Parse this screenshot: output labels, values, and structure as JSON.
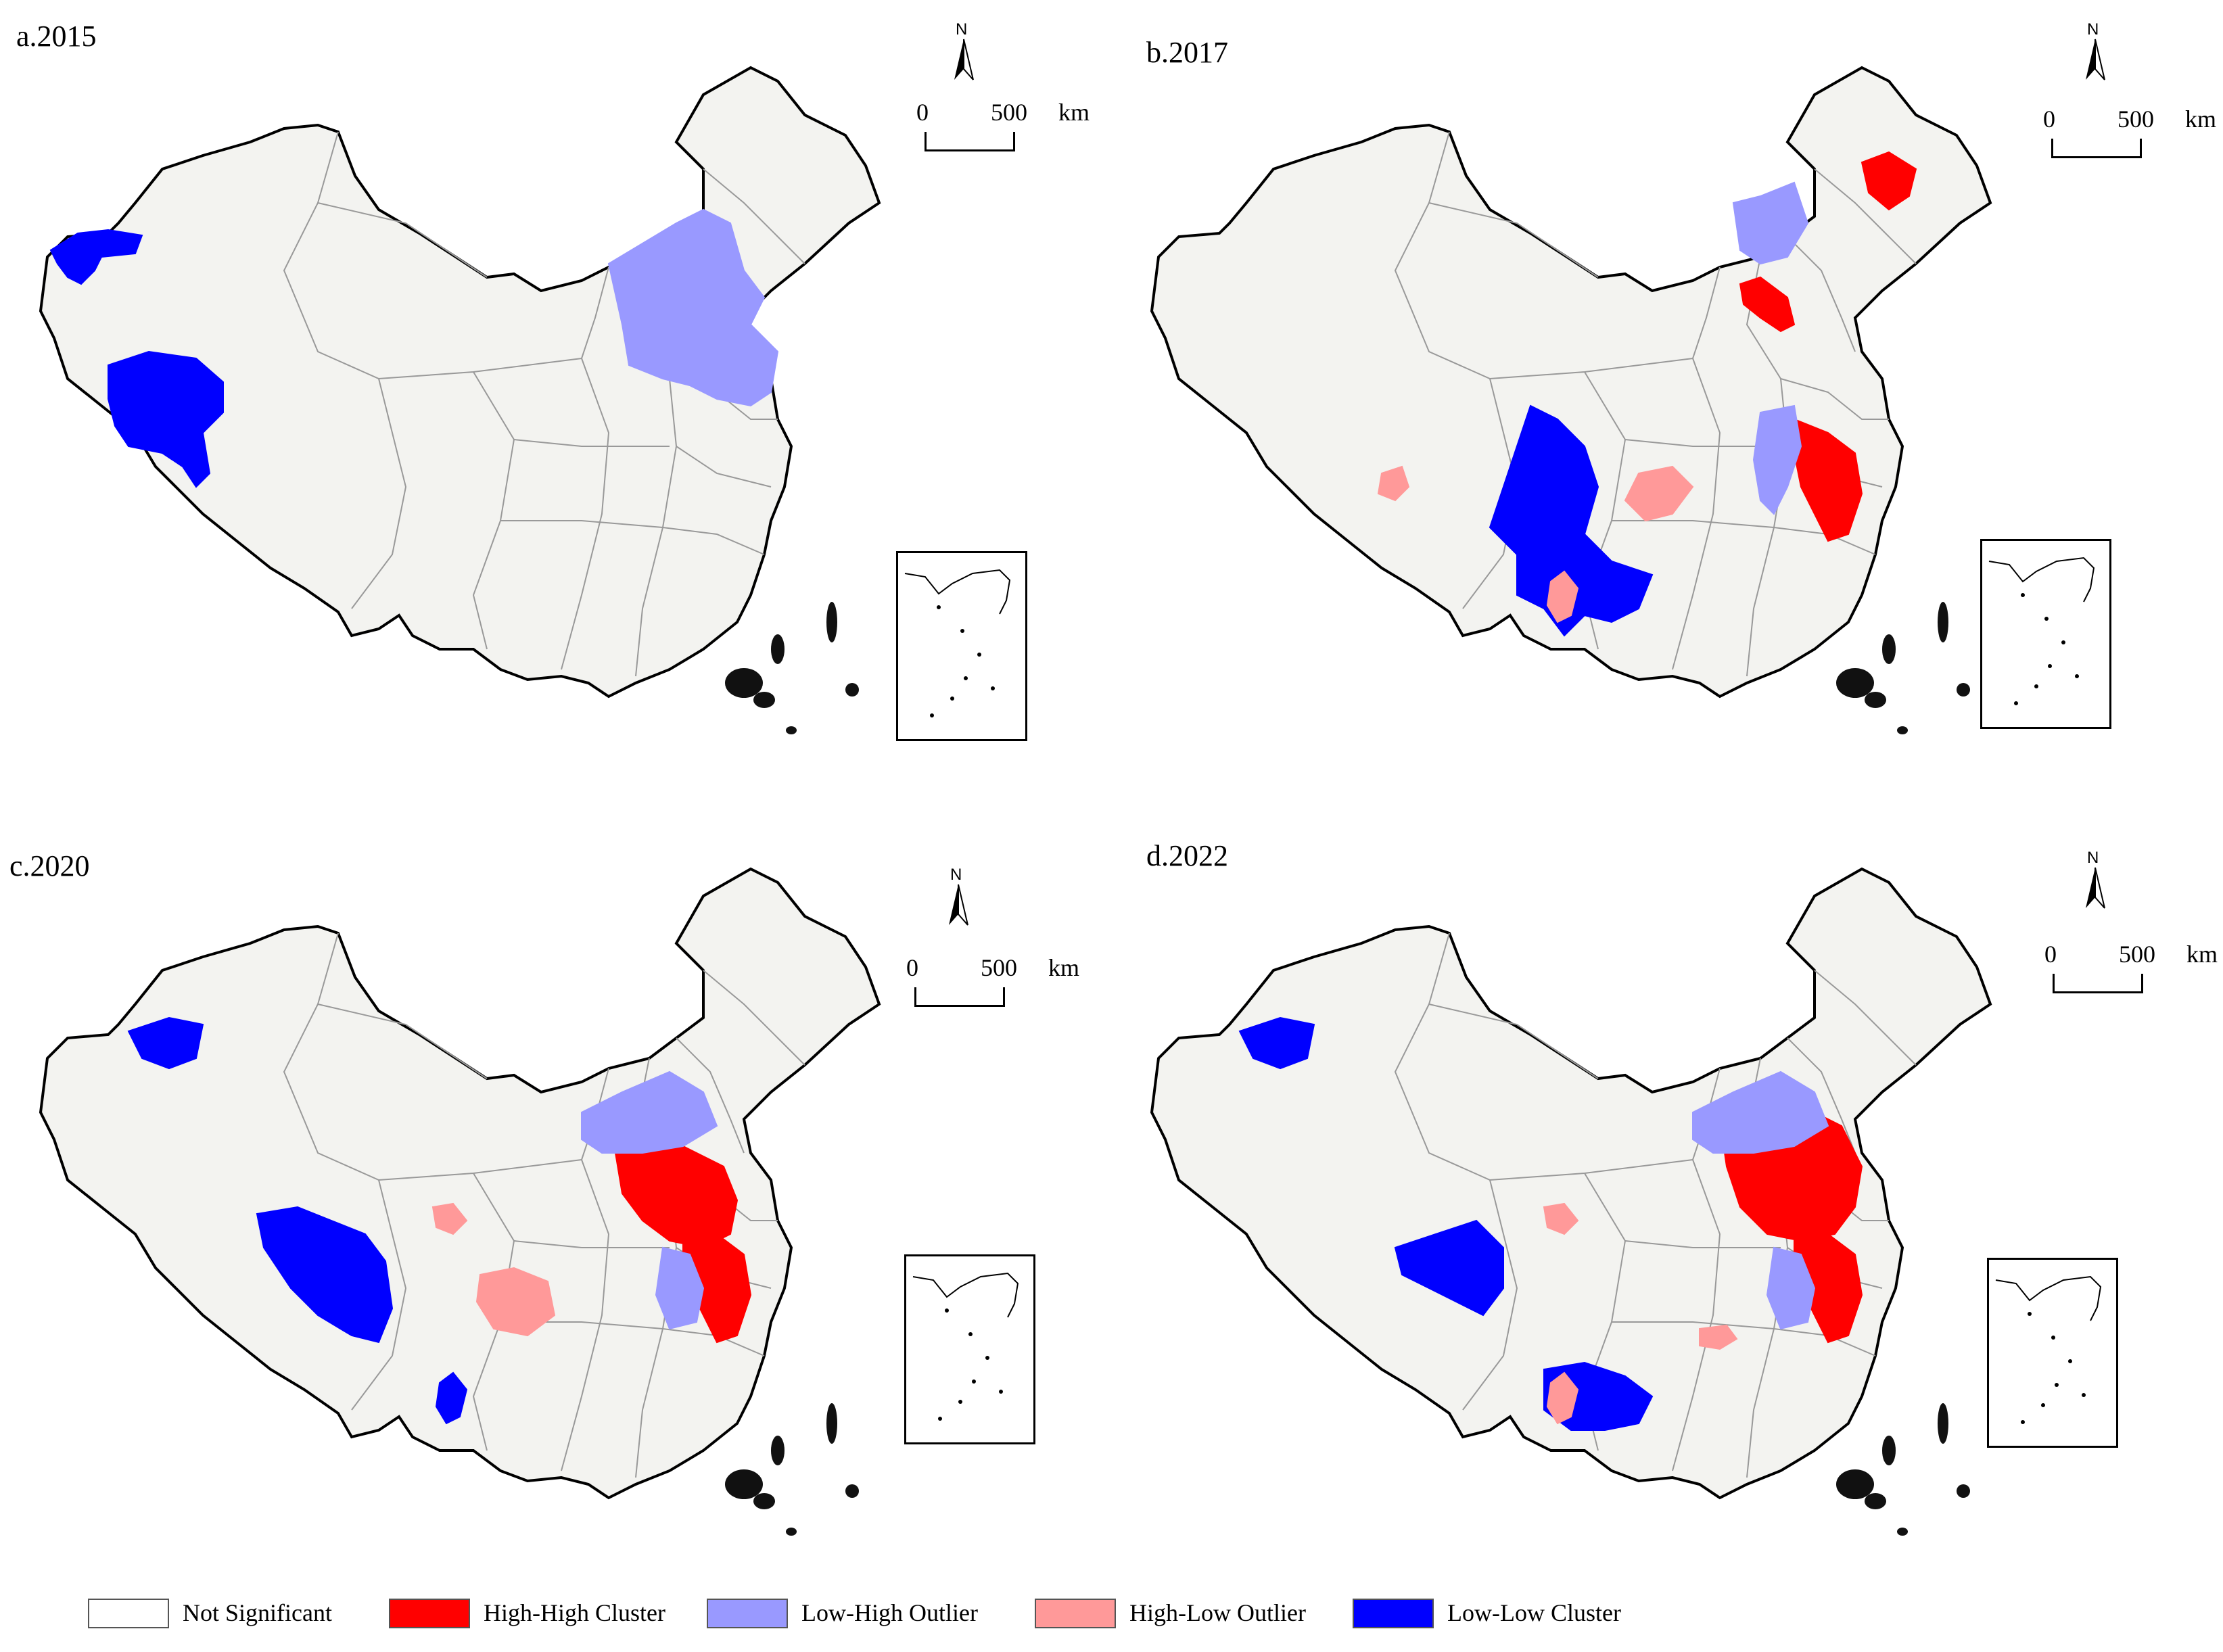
{
  "panels": [
    {
      "id": "a",
      "title": "a.2015",
      "scale": {
        "zero": "0",
        "distance": "500",
        "unit": "km"
      },
      "north": "N",
      "highlights": [
        {
          "class": "low-low",
          "region": "Xinjiang northwest tip"
        },
        {
          "class": "low-low",
          "region": "Southwest Xinjiang / Tibet"
        },
        {
          "class": "low-high",
          "region": "Inner Mongolia / Hebei / Beijing-Tianjin"
        }
      ]
    },
    {
      "id": "b",
      "title": "b.2017",
      "scale": {
        "zero": "0",
        "distance": "500",
        "unit": "km"
      },
      "north": "N",
      "highlights": [
        {
          "class": "low-low",
          "region": "Sichuan / Yunnan"
        },
        {
          "class": "high-high",
          "region": "Heilongjiang"
        },
        {
          "class": "high-high",
          "region": "Beijing-Tianjin"
        },
        {
          "class": "high-high",
          "region": "Jiangsu / Zhejiang"
        },
        {
          "class": "low-high",
          "region": "Inner Mongolia east"
        },
        {
          "class": "low-high",
          "region": "Anhui / Jiangsu"
        },
        {
          "class": "high-low",
          "region": "Tibet"
        },
        {
          "class": "high-low",
          "region": "Chongqing"
        },
        {
          "class": "high-low",
          "region": "Yunnan"
        }
      ]
    },
    {
      "id": "c",
      "title": "c.2020",
      "scale": {
        "zero": "0",
        "distance": "500",
        "unit": "km"
      },
      "north": "N",
      "highlights": [
        {
          "class": "low-low",
          "region": "Xinjiang west"
        },
        {
          "class": "low-low",
          "region": "Qinghai / Tibet"
        },
        {
          "class": "low-low",
          "region": "Yunnan"
        },
        {
          "class": "high-high",
          "region": "Hebei / Shandong / Beijing"
        },
        {
          "class": "high-high",
          "region": "Jiangsu / Zhejiang"
        },
        {
          "class": "low-high",
          "region": "Inner Mongolia / Shanxi"
        },
        {
          "class": "low-high",
          "region": "Anhui / Zhejiang"
        },
        {
          "class": "high-low",
          "region": "Sichuan / Chongqing"
        },
        {
          "class": "high-low",
          "region": "Gansu"
        }
      ]
    },
    {
      "id": "d",
      "title": "d.2022",
      "scale": {
        "zero": "0",
        "distance": "500",
        "unit": "km"
      },
      "north": "N",
      "highlights": [
        {
          "class": "low-low",
          "region": "Xinjiang west"
        },
        {
          "class": "low-low",
          "region": "Tibet / Sichuan west"
        },
        {
          "class": "low-low",
          "region": "Yunnan / Guangxi"
        },
        {
          "class": "high-high",
          "region": "Hebei / Shandong / Beijing-Tianjin"
        },
        {
          "class": "high-high",
          "region": "Jiangsu / Zhejiang"
        },
        {
          "class": "low-high",
          "region": "Inner Mongolia / Shanxi"
        },
        {
          "class": "low-high",
          "region": "Anhui / Zhejiang"
        },
        {
          "class": "high-low",
          "region": "Gansu"
        },
        {
          "class": "high-low",
          "region": "Hunan"
        },
        {
          "class": "high-low",
          "region": "Yunnan"
        }
      ]
    }
  ],
  "legend": [
    {
      "key": "not-significant",
      "label": "Not Significant",
      "color": "#ffffff"
    },
    {
      "key": "high-high",
      "label": "High-High Cluster",
      "color": "#ff0000"
    },
    {
      "key": "low-high",
      "label": "Low-High Outlier",
      "color": "#9999ff"
    },
    {
      "key": "high-low",
      "label": "High-Low Outlier",
      "color": "#ff9999"
    },
    {
      "key": "low-low",
      "label": "Low-Low Cluster",
      "color": "#0000ff"
    }
  ],
  "colors": {
    "land": "#f3f3f0",
    "border": "#000000",
    "province": "#999999"
  }
}
